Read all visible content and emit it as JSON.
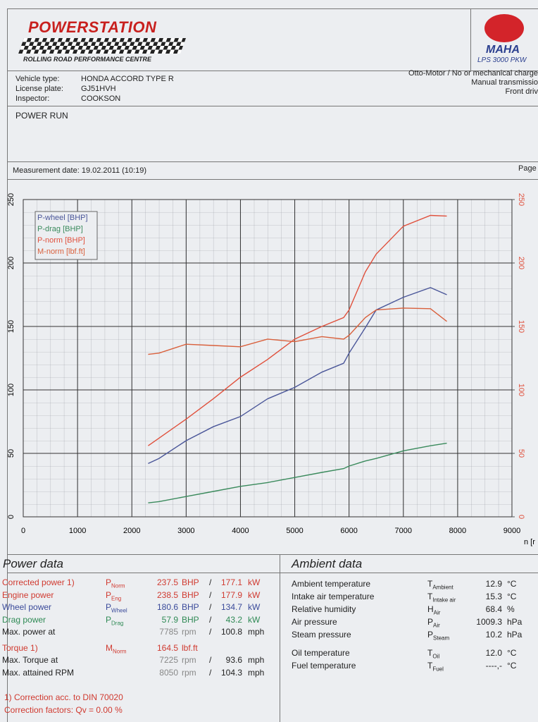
{
  "header": {
    "brand": "POWERSTATION",
    "tagline": "ROLLING ROAD PERFORMANCE CENTRE",
    "maker": "MAHA",
    "model": "LPS 3000 PKW"
  },
  "vehicle": {
    "rows": [
      [
        "Vehicle type:",
        "HONDA ACCORD TYPE R"
      ],
      [
        "License plate:",
        "GJ51HVH"
      ],
      [
        "Inspector:",
        "COOKSON"
      ]
    ],
    "notes": [
      "Otto-Motor / No or mechanical charge",
      "Manual transmissio",
      "Front driv"
    ]
  },
  "section": "POWER RUN",
  "measurement": "Measurement date: 19.02.2011 (10:19)",
  "page": "Page",
  "chart_data": {
    "type": "line",
    "xlabel": "n [r",
    "x": [
      2300,
      2500,
      3000,
      3500,
      4000,
      4500,
      5000,
      5500,
      5900,
      6000,
      6300,
      6500,
      7000,
      7500,
      7800
    ],
    "series": [
      {
        "name": "P-wheel [BHP]",
        "color": "#4a5699",
        "values": [
          42,
          46,
          60,
          71,
          79,
          93,
          102,
          114,
          121,
          129,
          149,
          163,
          173,
          180.6,
          175
        ]
      },
      {
        "name": "P-drag [BHP]",
        "color": "#3a8a5c",
        "values": [
          11,
          12,
          16,
          20,
          24,
          27,
          31,
          35,
          38,
          40,
          44,
          46,
          52,
          56,
          58
        ]
      },
      {
        "name": "P-norm [BHP]",
        "color": "#e0503c",
        "values": [
          56,
          62,
          77,
          93,
          110,
          124,
          140,
          150,
          157,
          163,
          193,
          207,
          229,
          237.5,
          237
        ]
      },
      {
        "name": "M-norm [lbf.ft]",
        "color": "#d9603c",
        "axis": "y2",
        "values": [
          128,
          129,
          136,
          135,
          134,
          140,
          138,
          142,
          140,
          143,
          157,
          163,
          164.5,
          164,
          154
        ]
      }
    ],
    "xlim": [
      0,
      9000
    ],
    "xticks": [
      0,
      1000,
      2000,
      3000,
      4000,
      5000,
      6000,
      7000,
      8000,
      9000
    ],
    "ylim": [
      0,
      250
    ],
    "yticks": [
      0,
      50,
      100,
      150,
      200,
      250
    ],
    "y2lim": [
      0,
      250
    ],
    "y2ticks": [
      0,
      50,
      100,
      150,
      200,
      250
    ],
    "y2color": "#e0503c",
    "grid": true,
    "legend": "upper left"
  },
  "power": {
    "title": "Power data",
    "rows": [
      {
        "label": "Corrected power 1)",
        "color": "#d03a30",
        "sym": "P",
        "sub": "Norm",
        "val": "237.5",
        "unit": "BHP",
        "sep": "/",
        "val2": "177.1",
        "unit2": "kW"
      },
      {
        "label": "Engine power",
        "color": "#d03a30",
        "sym": "P",
        "sub": "Eng",
        "val": "238.5",
        "unit": "BHP",
        "sep": "/",
        "val2": "177.9",
        "unit2": "kW"
      },
      {
        "label": "Wheel power",
        "color": "#3a4a9a",
        "sym": "P",
        "sub": "Wheel",
        "val": "180.6",
        "unit": "BHP",
        "sep": "/",
        "val2": "134.7",
        "unit2": "kW"
      },
      {
        "label": "Drag power",
        "color": "#2f8a55",
        "sym": "P",
        "sub": "Drag",
        "val": "57.9",
        "unit": "BHP",
        "sep": "/",
        "val2": "43.2",
        "unit2": "kW"
      },
      {
        "label": "Max. power at",
        "color": "#222222",
        "val": "7785",
        "unit": "rpm",
        "sep": "/",
        "val2": "100.8",
        "unit2": "mph"
      },
      {
        "label": "Torque 1)",
        "color": "#d03a30",
        "sym": "M",
        "sub": "Norm",
        "val": "164.5",
        "unit": "lbf.ft"
      },
      {
        "label": "Max. Torque at",
        "color": "#222222",
        "val": "7225",
        "unit": "rpm",
        "sep": "/",
        "val2": "93.6",
        "unit2": "mph"
      },
      {
        "label": "Max. attained RPM",
        "color": "#222222",
        "val": "8050",
        "unit": "rpm",
        "sep": "/",
        "val2": "104.3",
        "unit2": "mph"
      }
    ],
    "notes": [
      "1) Correction acc. to DIN 70020",
      "Correction factors: Qv = 0.00 %"
    ]
  },
  "ambient": {
    "title": "Ambient data",
    "rows": [
      {
        "label": "Ambient temperature",
        "sym": "T",
        "sub": "Ambient",
        "val": "12.9",
        "unit": "°C"
      },
      {
        "label": "Intake air temperature",
        "sym": "T",
        "sub": "Intake air",
        "val": "15.3",
        "unit": "°C"
      },
      {
        "label": "Relative humidity",
        "sym": "H",
        "sub": "Air",
        "val": "68.4",
        "unit": "%"
      },
      {
        "label": "Air pressure",
        "sym": "P",
        "sub": "Air",
        "val": "1009.3",
        "unit": "hPa"
      },
      {
        "label": "Steam pressure",
        "sym": "P",
        "sub": "Steam",
        "val": "10.2",
        "unit": "hPa"
      },
      {
        "label": "Oil temperature",
        "sym": "T",
        "sub": "Oil",
        "val": "12.0",
        "unit": "°C"
      },
      {
        "label": "Fuel temperature",
        "sym": "T",
        "sub": "Fuel",
        "val": "----,-",
        "unit": "°C"
      }
    ]
  }
}
